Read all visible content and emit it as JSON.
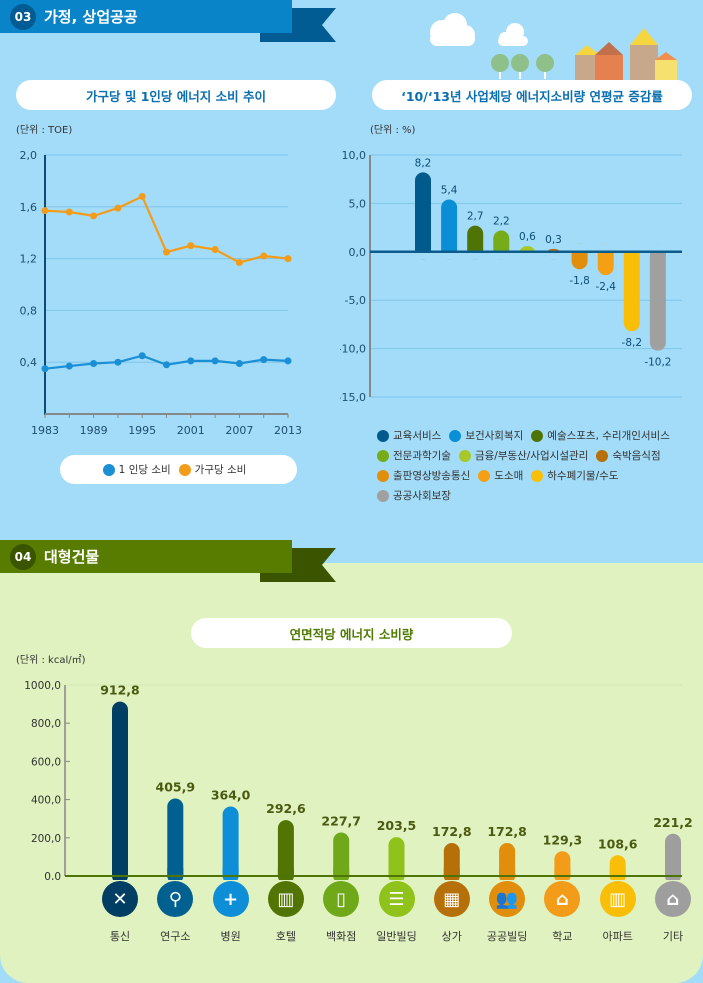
{
  "section3": {
    "number": "03",
    "title": "가정, 상업공공",
    "color": "#0a84c9",
    "dark": "#005c92"
  },
  "section4": {
    "number": "04",
    "title": "대형건물",
    "color": "#587c00",
    "dark": "#3a5400"
  },
  "chart_data": [
    {
      "type": "line",
      "title": "가구당 및 1인당 에너지 소비 추이",
      "unit": "(단위 : TOE)",
      "x": [
        1983,
        1986,
        1989,
        1992,
        1995,
        1998,
        2001,
        2004,
        2007,
        2010,
        2013
      ],
      "xticks": [
        "1983",
        "1989",
        "1995",
        "2001",
        "2007",
        "2013"
      ],
      "yticks": [
        "2,0",
        "1,6",
        "1,2",
        "0,8",
        "0,4"
      ],
      "ylim": [
        0,
        2.0
      ],
      "grid": true,
      "legend": "bottom",
      "series": [
        {
          "name": "1 인당 소비",
          "color": "#1a8fd6",
          "values": [
            0.35,
            0.37,
            0.39,
            0.4,
            0.45,
            0.38,
            0.41,
            0.41,
            0.39,
            0.42,
            0.41
          ]
        },
        {
          "name": "가구당 소비",
          "color": "#f39c1a",
          "values": [
            1.57,
            1.56,
            1.53,
            1.59,
            1.68,
            1.25,
            1.3,
            1.27,
            1.17,
            1.22,
            1.2
          ]
        }
      ]
    },
    {
      "type": "bar",
      "title": "‘10/‘13년 사업체당 에너지소비량 연평균 증감률",
      "unit": "(단위 : %)",
      "ylim": [
        -15,
        10
      ],
      "yticks": [
        "10,0",
        "5,0",
        "0,0",
        "-5,0",
        "-10,0",
        "-15,0"
      ],
      "grid": true,
      "legend": "bottom",
      "categories": [
        "교육서비스",
        "보건사회복지",
        "예술스포츠, 수리개인서비스",
        "전문과학기술",
        "금융/부동산/사업시설관리",
        "숙박음식점",
        "출판영상방송통신",
        "도소매",
        "하수폐기물/수도",
        "공공사회보장"
      ],
      "values": [
        8.2,
        5.4,
        2.7,
        2.2,
        0.6,
        0.3,
        -1.8,
        -2.4,
        -8.2,
        -10.2
      ],
      "labels": [
        "8,2",
        "5,4",
        "2,7",
        "2,2",
        "0,6",
        "0,3",
        "-1,8",
        "-2,4",
        "-8,2",
        "-10,2"
      ],
      "colors": [
        "#005a8c",
        "#0a8ed6",
        "#4f7406",
        "#76ac1a",
        "#a6c928",
        "#b8700a",
        "#e08e0b",
        "#f5a014",
        "#f9be07",
        "#a0a0a0"
      ]
    },
    {
      "type": "bar",
      "title": "연면적당 에너지 소비량",
      "unit": "(단위 : kcal/㎡)",
      "ylim": [
        0,
        1000
      ],
      "yticks": [
        "1000,0",
        "800,0",
        "600,0",
        "400,0",
        "200,0",
        "0,0"
      ],
      "categories": [
        "통신",
        "연구소",
        "병원",
        "호텔",
        "백화점",
        "일반빌딩",
        "상가",
        "공공빌딩",
        "학교",
        "아파트",
        "기타"
      ],
      "values": [
        912.8,
        405.9,
        364.0,
        292.6,
        227.7,
        203.5,
        172.8,
        172.8,
        129.3,
        108.6,
        221.2
      ],
      "labels": [
        "912,8",
        "405,9",
        "364,0",
        "292,6",
        "227,7",
        "203,5",
        "172,8",
        "172,8",
        "129,3",
        "108,6",
        "221,2"
      ],
      "colors": [
        "#003e63",
        "#00608f",
        "#0d8ed6",
        "#527405",
        "#6fa818",
        "#8fc21b",
        "#b5700a",
        "#e08e0b",
        "#f39c1a",
        "#f9be07",
        "#9e9e9e"
      ],
      "icons": [
        "satellite-icon",
        "microscope-icon",
        "hospital-cross-icon",
        "hotel-icon",
        "department-store-icon",
        "office-building-icon",
        "shop-icon",
        "public-building-icon",
        "school-icon",
        "apartment-icon",
        "house-icon"
      ]
    }
  ]
}
